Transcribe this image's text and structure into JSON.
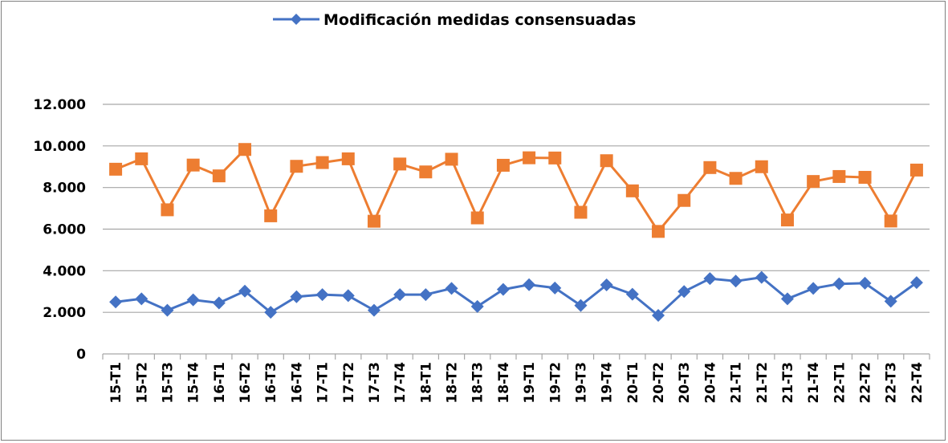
{
  "chart_data": {
    "type": "line",
    "categories": [
      "15-T1",
      "15-T2",
      "15-T3",
      "15-T4",
      "16-T1",
      "16-T2",
      "16-T3",
      "16-T4",
      "17-T1",
      "17-T2",
      "17-T3",
      "17-T4",
      "18-T1",
      "18-T2",
      "18-T3",
      "18-T4",
      "19-T1",
      "19-T2",
      "19-T3",
      "19-T4",
      "20-T1",
      "20-T2",
      "20-T3",
      "20-T4",
      "21-T1",
      "21-T2",
      "21-T3",
      "21-T4",
      "22-T1",
      "22-T2",
      "22-T3",
      "22-T4"
    ],
    "series": [
      {
        "name": "Modificación medidas consensuadas",
        "color": "#4472c4",
        "marker": "diamond",
        "values": [
          2500,
          2650,
          2100,
          2600,
          2450,
          3020,
          2000,
          2750,
          2850,
          2800,
          2100,
          2850,
          2850,
          3150,
          2280,
          3100,
          3330,
          3170,
          2330,
          3320,
          2870,
          1850,
          3000,
          3620,
          3500,
          3680,
          2650,
          3150,
          3370,
          3400,
          2530,
          3430
        ]
      },
      {
        "name": "",
        "color": "#ed7d31",
        "marker": "square",
        "values": [
          8880,
          9380,
          6930,
          9080,
          8560,
          9830,
          6640,
          9020,
          9200,
          9380,
          6380,
          9130,
          8750,
          9360,
          6540,
          9070,
          9430,
          9420,
          6810,
          9290,
          7840,
          5890,
          7380,
          8960,
          8440,
          9000,
          6440,
          8290,
          8530,
          8490,
          6390,
          8840
        ]
      }
    ],
    "y_ticks": [
      "0",
      "2.000",
      "4.000",
      "6.000",
      "8.000",
      "10.000",
      "12.000"
    ],
    "ylim": [
      0,
      12000
    ],
    "grid": true,
    "legend": "top-center"
  }
}
